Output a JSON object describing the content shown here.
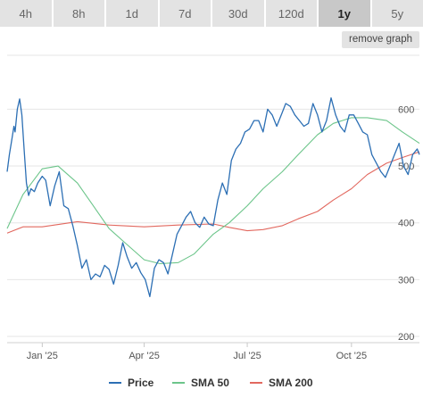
{
  "tabs": [
    {
      "label": "4h"
    },
    {
      "label": "8h"
    },
    {
      "label": "1d"
    },
    {
      "label": "7d"
    },
    {
      "label": "30d"
    },
    {
      "label": "120d"
    },
    {
      "label": "1y",
      "active": true
    },
    {
      "label": "5y"
    }
  ],
  "remove_graph_label": "remove graph",
  "colors": {
    "price": "#2c6fb4",
    "sma50": "#6cc58a",
    "sma200": "#e2685f",
    "grid": "#e6e6e6"
  },
  "chart_data": {
    "type": "line",
    "x_tick_labels": [
      "Jan '25",
      "Apr '25",
      "Jul '25",
      "Oct '25"
    ],
    "y_tick_labels": [
      "200",
      "300",
      "400",
      "500",
      "600"
    ],
    "ylim": [
      200,
      640
    ],
    "grid": true,
    "legend": "bottom",
    "series": [
      {
        "name": "Price",
        "x": [
          "2024-12-01",
          "2024-12-03",
          "2024-12-05",
          "2024-12-07",
          "2024-12-08",
          "2024-12-10",
          "2024-12-12",
          "2024-12-14",
          "2024-12-16",
          "2024-12-18",
          "2024-12-20",
          "2024-12-22",
          "2024-12-25",
          "2024-12-28",
          "2025-01-01",
          "2025-01-04",
          "2025-01-08",
          "2025-01-12",
          "2025-01-16",
          "2025-01-20",
          "2025-01-24",
          "2025-01-28",
          "2025-02-01",
          "2025-02-05",
          "2025-02-09",
          "2025-02-13",
          "2025-02-17",
          "2025-02-21",
          "2025-02-25",
          "2025-03-01",
          "2025-03-05",
          "2025-03-09",
          "2025-03-13",
          "2025-03-17",
          "2025-03-21",
          "2025-03-25",
          "2025-03-29",
          "2025-04-02",
          "2025-04-06",
          "2025-04-10",
          "2025-04-14",
          "2025-04-18",
          "2025-04-22",
          "2025-04-26",
          "2025-04-30",
          "2025-05-04",
          "2025-05-08",
          "2025-05-12",
          "2025-05-16",
          "2025-05-20",
          "2025-05-24",
          "2025-05-28",
          "2025-06-01",
          "2025-06-05",
          "2025-06-09",
          "2025-06-13",
          "2025-06-17",
          "2025-06-21",
          "2025-06-25",
          "2025-06-29",
          "2025-07-03",
          "2025-07-07",
          "2025-07-11",
          "2025-07-15",
          "2025-07-19",
          "2025-07-23",
          "2025-07-27",
          "2025-07-31",
          "2025-08-04",
          "2025-08-08",
          "2025-08-12",
          "2025-08-16",
          "2025-08-20",
          "2025-08-24",
          "2025-08-28",
          "2025-09-01",
          "2025-09-05",
          "2025-09-09",
          "2025-09-13",
          "2025-09-17",
          "2025-09-21",
          "2025-09-25",
          "2025-09-29",
          "2025-10-03",
          "2025-10-07",
          "2025-10-11",
          "2025-10-15",
          "2025-10-19",
          "2025-10-23",
          "2025-10-27",
          "2025-10-31",
          "2025-11-04",
          "2025-11-08",
          "2025-11-12",
          "2025-11-16",
          "2025-11-20",
          "2025-11-24",
          "2025-11-28",
          "2025-11-30"
        ],
        "values": [
          490,
          520,
          545,
          570,
          560,
          600,
          618,
          590,
          530,
          470,
          448,
          460,
          455,
          470,
          482,
          475,
          430,
          465,
          490,
          430,
          425,
          395,
          360,
          320,
          335,
          300,
          310,
          305,
          325,
          318,
          292,
          325,
          365,
          340,
          320,
          330,
          312,
          300,
          270,
          320,
          335,
          330,
          310,
          345,
          380,
          395,
          410,
          420,
          400,
          392,
          410,
          398,
          395,
          440,
          470,
          450,
          510,
          530,
          540,
          560,
          565,
          580,
          580,
          560,
          600,
          590,
          570,
          590,
          610,
          605,
          590,
          580,
          570,
          575,
          610,
          590,
          560,
          580,
          620,
          590,
          570,
          560,
          590,
          590,
          575,
          560,
          555,
          520,
          505,
          490,
          480,
          500,
          520,
          540,
          500,
          485,
          520,
          530,
          520
        ]
      },
      {
        "name": "SMA 50",
        "x": [
          "2024-12-01",
          "2024-12-15",
          "2025-01-01",
          "2025-01-15",
          "2025-02-01",
          "2025-02-15",
          "2025-03-01",
          "2025-03-15",
          "2025-04-01",
          "2025-04-15",
          "2025-05-01",
          "2025-05-15",
          "2025-06-01",
          "2025-06-15",
          "2025-07-01",
          "2025-07-15",
          "2025-08-01",
          "2025-08-15",
          "2025-09-01",
          "2025-09-15",
          "2025-10-01",
          "2025-10-15",
          "2025-11-01",
          "2025-11-15",
          "2025-11-30"
        ],
        "values": [
          390,
          450,
          495,
          500,
          470,
          430,
          390,
          365,
          335,
          328,
          330,
          345,
          380,
          400,
          430,
          460,
          490,
          520,
          555,
          575,
          585,
          585,
          580,
          560,
          540
        ]
      },
      {
        "name": "SMA 200",
        "x": [
          "2024-12-01",
          "2024-12-15",
          "2025-01-01",
          "2025-02-01",
          "2025-03-01",
          "2025-04-01",
          "2025-05-01",
          "2025-06-01",
          "2025-06-15",
          "2025-07-01",
          "2025-07-15",
          "2025-08-01",
          "2025-08-15",
          "2025-09-01",
          "2025-09-15",
          "2025-10-01",
          "2025-10-15",
          "2025-11-01",
          "2025-11-15",
          "2025-11-30"
        ],
        "values": [
          382,
          393,
          393,
          402,
          396,
          393,
          396,
          398,
          392,
          386,
          388,
          395,
          407,
          420,
          440,
          460,
          485,
          505,
          515,
          525
        ]
      }
    ]
  }
}
